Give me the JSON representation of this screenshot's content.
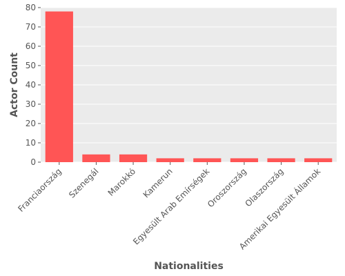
{
  "chart_data": {
    "type": "bar",
    "title": "",
    "xlabel": "Nationalities",
    "ylabel": "Actor Count",
    "categories": [
      "Franciaország",
      "Szenegál",
      "Marokkó",
      "Kamerun",
      "Egyesült Arab Emírségek",
      "Oroszország",
      "Olaszország",
      "Amerikai Egyesült Államok"
    ],
    "values": [
      78,
      4,
      4,
      2,
      2,
      2,
      2,
      2
    ],
    "ylim": [
      0,
      80
    ],
    "yticks": [
      0,
      10,
      20,
      30,
      40,
      50,
      60,
      70,
      80
    ],
    "grid": true,
    "bar_color": "#FF5555",
    "background_color": "#EBEBEB",
    "grid_color": "#FFFFFF"
  }
}
